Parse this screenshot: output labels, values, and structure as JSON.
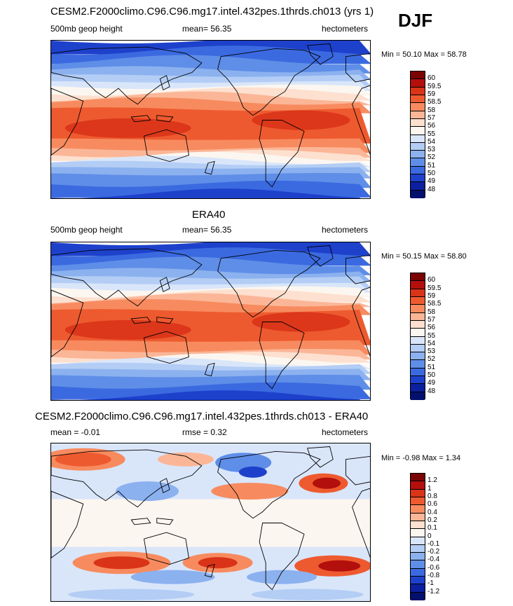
{
  "season": "DJF",
  "panels": [
    {
      "title": "CESM2.F2000climo.C96.C96.mg17.intel.432pes.1thrds.ch013 (yrs 1)",
      "left_label": "500mb geop height",
      "center_label": "mean=  56.35",
      "units": "hectometers",
      "minmax": "Min =  50.10 Max =  58.78",
      "colorbar_levels": [
        "60",
        "59.5",
        "59",
        "58.5",
        "58",
        "57",
        "56",
        "55",
        "54",
        "53",
        "52",
        "51",
        "50",
        "49",
        "48"
      ],
      "colors": [
        "#7a0403",
        "#b30f0c",
        "#d93318",
        "#ee5a2f",
        "#f78b5f",
        "#fbb697",
        "#fde0cf",
        "#fcf6f0",
        "#d9e6fa",
        "#b3cdf5",
        "#8cb1ef",
        "#5f8ee8",
        "#3b6ae0",
        "#1e41cc",
        "#0c1f9e",
        "#04106e"
      ],
      "map_kind": "model"
    },
    {
      "title": "ERA40",
      "left_label": "500mb geop height",
      "center_label": "mean=  56.35",
      "units": "hectometers",
      "minmax": "Min =  50.15 Max =  58.80",
      "colorbar_levels": [
        "60",
        "59.5",
        "59",
        "58.5",
        "58",
        "57",
        "56",
        "55",
        "54",
        "53",
        "52",
        "51",
        "50",
        "49",
        "48"
      ],
      "colors": [
        "#7a0403",
        "#b30f0c",
        "#d93318",
        "#ee5a2f",
        "#f78b5f",
        "#fbb697",
        "#fde0cf",
        "#fcf6f0",
        "#d9e6fa",
        "#b3cdf5",
        "#8cb1ef",
        "#5f8ee8",
        "#3b6ae0",
        "#1e41cc",
        "#0c1f9e",
        "#04106e"
      ],
      "map_kind": "obs"
    },
    {
      "title": "CESM2.F2000climo.C96.C96.mg17.intel.432pes.1thrds.ch013 - ERA40",
      "left_label": "mean =  -0.01",
      "center_label": "rmse =   0.32",
      "units": "hectometers",
      "minmax": "Min =  -0.98 Max =   1.34",
      "colorbar_levels": [
        "1.2",
        "1",
        "0.8",
        "0.6",
        "0.4",
        "0.2",
        "0.1",
        "0",
        "-0.1",
        "-0.2",
        "-0.4",
        "-0.6",
        "-0.8",
        "-1",
        "-1.2"
      ],
      "colors": [
        "#7a0403",
        "#b30f0c",
        "#d93318",
        "#ee5a2f",
        "#f78b5f",
        "#fbb697",
        "#fde0cf",
        "#fcf6f0",
        "#d9e6fa",
        "#b3cdf5",
        "#8cb1ef",
        "#5f8ee8",
        "#3b6ae0",
        "#1e41cc",
        "#0c1f9e",
        "#04106e"
      ],
      "map_kind": "diff"
    }
  ]
}
